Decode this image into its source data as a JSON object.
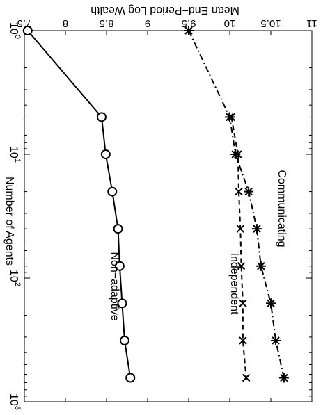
{
  "chart_data": {
    "type": "line",
    "rotated": "90deg clockwise",
    "ylabel": "Mean End−Period Log Wealth",
    "xlabel": "Number of Agents",
    "xscale": "log",
    "xlim": [
      1,
      1000
    ],
    "ylim": [
      7.5,
      11
    ],
    "x_ticks": [
      {
        "value": 1,
        "base": "10",
        "exp": "0"
      },
      {
        "value": 10,
        "base": "10",
        "exp": "1"
      },
      {
        "value": 100,
        "base": "10",
        "exp": "2"
      },
      {
        "value": 1000,
        "base": "10",
        "exp": "3"
      }
    ],
    "y_ticks": [
      {
        "value": 7.5,
        "label": "7.5"
      },
      {
        "value": 8,
        "label": "8"
      },
      {
        "value": 8.5,
        "label": "8.5"
      },
      {
        "value": 9,
        "label": "9"
      },
      {
        "value": 9.5,
        "label": "9.5"
      },
      {
        "value": 10,
        "label": "10"
      },
      {
        "value": 10.5,
        "label": "10.5"
      },
      {
        "value": 11,
        "label": "11"
      }
    ],
    "grid": false,
    "series": [
      {
        "name": "Communicating",
        "marker": "asterisk",
        "line": "dash-dot",
        "x": [
          1,
          5,
          10,
          20,
          40,
          80,
          160,
          320,
          640
        ],
        "y": [
          9.5,
          10.0,
          10.07,
          10.23,
          10.33,
          10.38,
          10.5,
          10.56,
          10.66
        ]
      },
      {
        "name": "Independent",
        "marker": "x",
        "line": "dashed",
        "x": [
          5,
          10,
          20,
          40,
          80,
          160,
          320,
          640
        ],
        "y": [
          10.02,
          10.1,
          10.11,
          10.13,
          10.14,
          10.16,
          10.16,
          10.2
        ]
      },
      {
        "name": "Non−adaptive",
        "marker": "circle",
        "line": "solid",
        "x": [
          1,
          5,
          10,
          20,
          40,
          80,
          160,
          320,
          640
        ],
        "y": [
          7.54,
          8.44,
          8.49,
          8.57,
          8.64,
          8.66,
          8.69,
          8.72,
          8.79
        ]
      }
    ]
  }
}
